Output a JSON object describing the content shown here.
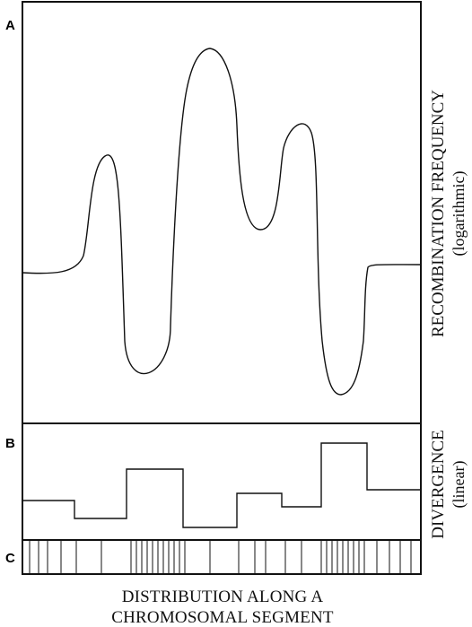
{
  "panels": {
    "a": {
      "letter": "A"
    },
    "b": {
      "letter": "B"
    },
    "c": {
      "letter": "C"
    }
  },
  "labels": {
    "recombination_title": "RECOMBINATION FREQUENCY",
    "recombination_sub": "(logarithmic)",
    "divergence_title": "DIVERGENCE",
    "divergence_sub": "(linear)",
    "distribution_line1": "DISTRIBUTION ALONG A",
    "distribution_line2": "CHROMOSOMAL SEGMENT"
  },
  "colors": {
    "ink": "#111111",
    "background": "#ffffff"
  }
}
